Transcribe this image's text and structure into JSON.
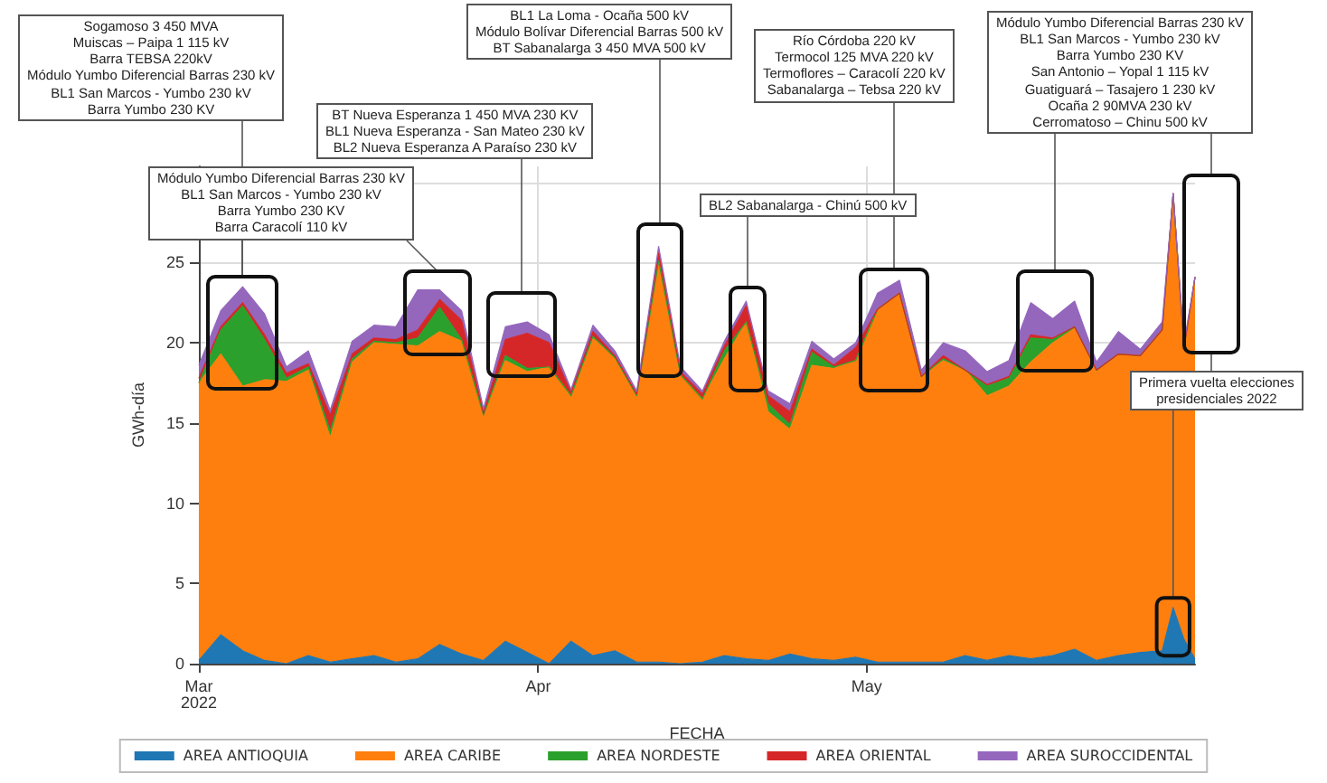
{
  "chart_data": {
    "type": "area",
    "stacked": true,
    "xlabel": "FECHA",
    "ylabel": "GWh-día",
    "x": [
      "2022-03-01",
      "2022-03-03",
      "2022-03-05",
      "2022-03-07",
      "2022-03-09",
      "2022-03-11",
      "2022-03-13",
      "2022-03-15",
      "2022-03-17",
      "2022-03-19",
      "2022-03-21",
      "2022-03-23",
      "2022-03-25",
      "2022-03-27",
      "2022-03-29",
      "2022-03-31",
      "2022-04-02",
      "2022-04-04",
      "2022-04-06",
      "2022-04-08",
      "2022-04-10",
      "2022-04-12",
      "2022-04-14",
      "2022-04-16",
      "2022-04-18",
      "2022-04-20",
      "2022-04-22",
      "2022-04-24",
      "2022-04-26",
      "2022-04-28",
      "2022-04-30",
      "2022-05-02",
      "2022-05-04",
      "2022-05-06",
      "2022-05-08",
      "2022-05-10",
      "2022-05-12",
      "2022-05-14",
      "2022-05-16",
      "2022-05-18",
      "2022-05-20",
      "2022-05-22",
      "2022-05-24",
      "2022-05-26",
      "2022-05-28",
      "2022-05-29",
      "2022-05-30",
      "2022-05-31"
    ],
    "series": [
      {
        "name": "AREA ANTIOQUIA",
        "color": "#1f77b4",
        "values": [
          0.2,
          1.8,
          0.8,
          0.2,
          0,
          0.5,
          0.1,
          0.3,
          0.5,
          0.1,
          0.3,
          1.2,
          0.6,
          0.2,
          1.4,
          0.7,
          0,
          1.4,
          0.5,
          0.8,
          0.1,
          0.1,
          0,
          0.1,
          0.5,
          0.3,
          0.2,
          0.6,
          0.3,
          0.2,
          0.4,
          0.1,
          0.1,
          0.1,
          0.1,
          0.5,
          0.2,
          0.5,
          0.3,
          0.5,
          0.9,
          0.2,
          0.5,
          0.7,
          0.8,
          3.5,
          1.5,
          0.3
        ]
      },
      {
        "name": "AREA CARIBE",
        "color": "#ff7f0e",
        "values": [
          17.3,
          17.5,
          16.5,
          17.5,
          17.6,
          17.8,
          14,
          18.5,
          19.5,
          19.8,
          19.5,
          19.5,
          19.5,
          15.3,
          17.5,
          17.5,
          18.5,
          15.3,
          19.8,
          18.2,
          16.6,
          25,
          18,
          16.4,
          18.5,
          21,
          15.5,
          14,
          18.3,
          18.2,
          18.5,
          22,
          23,
          17.8,
          18.8,
          17.8,
          16.5,
          16.8,
          18.5,
          19.5,
          20,
          18,
          18.8,
          18.5,
          20,
          25.8,
          18.2,
          23.8
        ]
      },
      {
        "name": "AREA NORDESTE",
        "color": "#2ca02c",
        "values": [
          0,
          1.5,
          5,
          2.5,
          0.2,
          0.2,
          0.4,
          0.2,
          0.1,
          0.1,
          0.5,
          1.5,
          0.1,
          0,
          0.3,
          0.2,
          0,
          0,
          0.1,
          0.1,
          0,
          0,
          0,
          0,
          0.5,
          0,
          0.5,
          0.3,
          0.8,
          0.1,
          0,
          0,
          0,
          0,
          0.1,
          0,
          0.6,
          0.5,
          1.5,
          0.2,
          0.1,
          0.1,
          0,
          0,
          0,
          0,
          0,
          0
        ]
      },
      {
        "name": "AREA ORIENTAL",
        "color": "#d62728",
        "values": [
          0.3,
          0.2,
          0.2,
          0.3,
          0.3,
          0.2,
          1,
          0.3,
          0.2,
          0.2,
          0.5,
          0.5,
          1.2,
          0.1,
          1,
          2.2,
          1.5,
          0.2,
          0.3,
          0.1,
          0.1,
          0.5,
          0.2,
          0.3,
          0.3,
          1,
          0.5,
          0.8,
          0.2,
          0.1,
          0.8,
          0,
          0,
          0,
          0.2,
          0,
          0.1,
          0.1,
          0.2,
          0.1,
          0,
          0,
          0,
          0,
          0,
          0,
          0,
          0
        ]
      },
      {
        "name": "AREA SUROCCIDENTAL",
        "color": "#9467bd",
        "values": [
          0.8,
          1,
          1,
          1.3,
          0.4,
          0.8,
          0.3,
          0.8,
          0.8,
          0.8,
          2.5,
          0.6,
          0.6,
          0.3,
          0.8,
          0.7,
          0.5,
          0.2,
          0.4,
          0.3,
          0.2,
          0.4,
          0.3,
          0.2,
          0.3,
          0.3,
          0.3,
          0.5,
          0.5,
          0.4,
          0.3,
          1,
          0.8,
          0.4,
          0.8,
          1.2,
          0.8,
          1,
          2,
          1.2,
          1.6,
          0.5,
          1.4,
          0.4,
          0.5,
          0,
          0.3,
          0
        ]
      }
    ],
    "xlim": [
      "2022-03-01",
      "2022-05-31"
    ],
    "xticks": [
      {
        "value": "2022-03-01",
        "label": "Mar\n2022"
      },
      {
        "value": "2022-04-01",
        "label": "Apr"
      },
      {
        "value": "2022-05-01",
        "label": "May"
      }
    ],
    "ylim": [
      0,
      31
    ],
    "yticks": [
      0,
      5,
      10,
      15,
      20,
      25,
      {
        "value": 30,
        "label": null
      }
    ],
    "grid": true,
    "legend": "bottom",
    "annotations": [
      "Sogamoso 3 450 MVA\nMuiscas – Paipa 1 115 kV\nBarra TEBSA 220kV\nMódulo Yumbo Diferencial Barras 230 kV\nBL1 San Marcos - Yumbo 230 kV\nBarra Yumbo 230 KV",
      "Módulo Yumbo Diferencial Barras 230 kV\nBL1 San Marcos - Yumbo 230 kV\nBarra Yumbo 230 KV\nBarra Caracolí 110 kV",
      "BT Nueva Esperanza 1 450 MVA 230 KV\nBL1 Nueva Esperanza - San Mateo 230 kV\nBL2 Nueva Esperanza A Paraíso 230 kV",
      "BL1 La Loma - Ocaña 500 kV\nMódulo Bolívar Diferencial Barras 500 kV\nBT Sabanalarga 3 450 MVA 500 kV",
      "BL2 Sabanalarga - Chinú 500 kV",
      "Río Córdoba 220 kV\nTermocol 125 MVA 220 kV\nTermoflores – Caracolí 220 kV\nSabanalarga – Tebsa 220 kV",
      "Módulo Yumbo Diferencial Barras 230 kV\nBL1 San Marcos - Yumbo 230 kV\nBarra Yumbo 230 KV\nSan Antonio – Yopal 1 115 kV\nGuatiguará – Tasajero 1 230 kV\nOcaña 2 90MVA 230 kV\nCerromatoso – Chinu 500 kV",
      {
        "text": "Primera vuelta elecciones\npresidenciales 2022",
        "x": "2022-05-29",
        "y": 3.5
      }
    ]
  }
}
